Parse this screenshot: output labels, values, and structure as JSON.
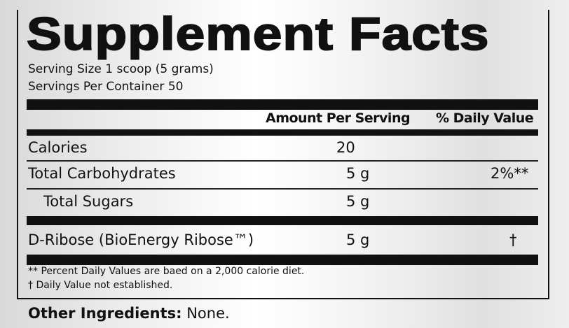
{
  "title": "Supplement Facts",
  "serving_size": "Serving Size  1 scoop (5 grams)",
  "servings_per_container": "Servings Per Container  50",
  "header": {
    "amount": "Amount Per Serving",
    "dv": "% Daily Value"
  },
  "rows": [
    {
      "name": "Calories",
      "amount": "20",
      "dv": ""
    },
    {
      "name": "Total Carbohydrates",
      "amount": "5 g",
      "dv": "2%**"
    },
    {
      "name": "Total Sugars",
      "amount": "5 g",
      "dv": ""
    },
    {
      "name": "D-Ribose (BioEnergy Ribose™)",
      "amount": "5 g",
      "dv": "†"
    }
  ],
  "footnotes": [
    "** Percent Daily Values are baed on a 2,000 calorie diet.",
    "† Daily Value not established."
  ],
  "other_ingredients": {
    "label": "Other Ingredients:",
    "value": "None."
  }
}
